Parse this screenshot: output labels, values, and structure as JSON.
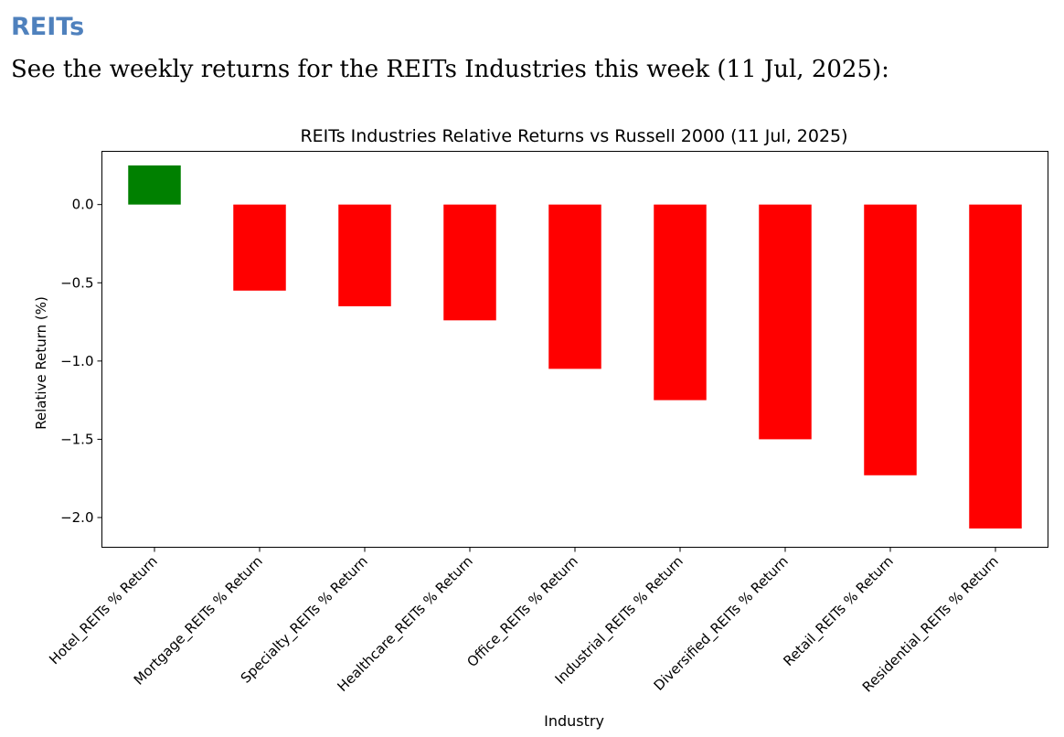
{
  "page": {
    "heading": "REITs",
    "intro": "See the weekly returns for the REITs Industries this week (11 Jul, 2025):"
  },
  "chart_data": {
    "type": "bar",
    "title": "REITs Industries Relative Returns vs Russell 2000 (11 Jul, 2025)",
    "xlabel": "Industry",
    "ylabel": "Relative Return (%)",
    "categories": [
      "Hotel_REITs % Return",
      "Mortgage_REITs % Return",
      "Specialty_REITs % Return",
      "Healthcare_REITs % Return",
      "Office_REITs % Return",
      "Industrial_REITs % Return",
      "Diversified_REITs % Return",
      "Retail_REITs % Return",
      "Residential_REITs % Return"
    ],
    "values": [
      0.25,
      -0.55,
      -0.65,
      -0.74,
      -1.05,
      -1.25,
      -1.5,
      -1.73,
      -2.07
    ],
    "ylim": [
      -2.19,
      0.34
    ],
    "yticks": [
      0.0,
      -0.5,
      -1.0,
      -1.5,
      -2.0
    ],
    "ytick_labels": [
      "0.0",
      "−0.5",
      "−1.0",
      "−1.5",
      "−2.0"
    ],
    "grid": false,
    "legend": "none",
    "colors": {
      "positive": "#008000",
      "negative": "#ff0000",
      "axis": "#000000",
      "background": "#ffffff"
    }
  }
}
